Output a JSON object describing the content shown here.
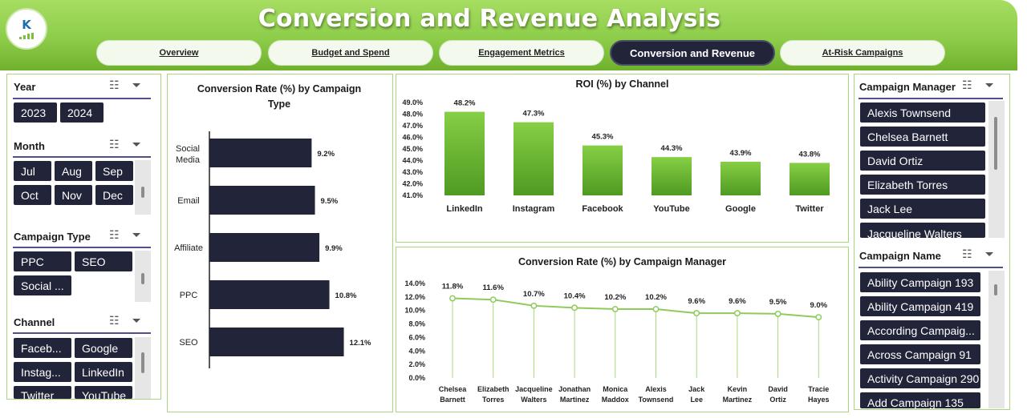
{
  "title": "Conversion and Revenue Analysis",
  "logo": {
    "text": "K"
  },
  "tabs": [
    {
      "label": "Overview",
      "active": false
    },
    {
      "label": "Budget and Spend",
      "active": false
    },
    {
      "label": "Engagement Metrics",
      "active": false
    },
    {
      "label": "Conversion and Revenue",
      "active": true
    },
    {
      "label": "At-Risk Campaigns",
      "active": false
    }
  ],
  "slicers": {
    "year": {
      "label": "Year",
      "items": [
        "2023",
        "2024"
      ]
    },
    "month": {
      "label": "Month",
      "items": [
        "Jul",
        "Aug",
        "Sep",
        "Oct",
        "Nov",
        "Dec"
      ]
    },
    "campaign_type": {
      "label": "Campaign Type",
      "items": [
        "PPC",
        "SEO",
        "Social ..."
      ]
    },
    "channel": {
      "label": "Channel",
      "items": [
        "Faceb...",
        "Google",
        "Instag...",
        "LinkedIn",
        "Twitter",
        "YouTube"
      ]
    },
    "campaign_manager": {
      "label": "Campaign Manager",
      "items": [
        "Alexis Townsend",
        "Chelsea Barnett",
        "David Ortiz",
        "Elizabeth Torres",
        "Jack Lee",
        "Jacqueline Walters"
      ]
    },
    "campaign_name": {
      "label": "Campaign Name",
      "items": [
        "Ability Campaign 193",
        "Ability Campaign 419",
        "According Campaig...",
        "Across Campaign 91",
        "Activity Campaign 290",
        "Add Campaign 135"
      ]
    }
  },
  "colors": {
    "accent": "#8dcd4a",
    "dark": "#22243a",
    "bar_green": "#7cc243",
    "line_green": "#8dcc5a"
  },
  "chart_data": [
    {
      "type": "bar",
      "orientation": "horizontal",
      "title": "Conversion Rate (%) by Campaign Type",
      "categories": [
        "Social Media",
        "Email",
        "Affiliate",
        "PPC",
        "SEO"
      ],
      "values": [
        9.2,
        9.5,
        9.9,
        10.8,
        12.1
      ],
      "labels": [
        "9.2%",
        "9.5%",
        "9.9%",
        "10.8%",
        "12.1%"
      ],
      "xlim": [
        0,
        13
      ]
    },
    {
      "type": "bar",
      "title": "ROI (%) by Channel",
      "categories": [
        "LinkedIn",
        "Instagram",
        "Facebook",
        "YouTube",
        "Google",
        "Twitter"
      ],
      "values": [
        48.2,
        47.3,
        45.3,
        44.3,
        43.9,
        43.8
      ],
      "labels": [
        "48.2%",
        "47.3%",
        "45.3%",
        "44.3%",
        "43.9%",
        "43.8%"
      ],
      "ylim": [
        41.0,
        49.0
      ],
      "yticks": [
        "49.0%",
        "48.0%",
        "47.0%",
        "46.0%",
        "45.0%",
        "44.0%",
        "43.0%",
        "42.0%",
        "41.0%"
      ]
    },
    {
      "type": "line",
      "title": "Conversion Rate (%) by Campaign Manager",
      "categories": [
        "Chelsea Barnett",
        "Elizabeth Torres",
        "Jacqueline Walters",
        "Jonathan Martinez",
        "Monica Maddox",
        "Alexis Townsend",
        "Jack Lee",
        "Kevin Martinez",
        "David Ortiz",
        "Tracie Hayes"
      ],
      "values": [
        11.8,
        11.6,
        10.7,
        10.4,
        10.2,
        10.2,
        9.6,
        9.6,
        9.5,
        9.0
      ],
      "labels": [
        "11.8%",
        "11.6%",
        "10.7%",
        "10.4%",
        "10.2%",
        "10.2%",
        "9.6%",
        "9.6%",
        "9.5%",
        "9.0%"
      ],
      "ylim": [
        0,
        14
      ],
      "yticks": [
        "14.0%",
        "12.0%",
        "10.0%",
        "8.0%",
        "6.0%",
        "4.0%",
        "2.0%",
        "0.0%"
      ]
    }
  ]
}
